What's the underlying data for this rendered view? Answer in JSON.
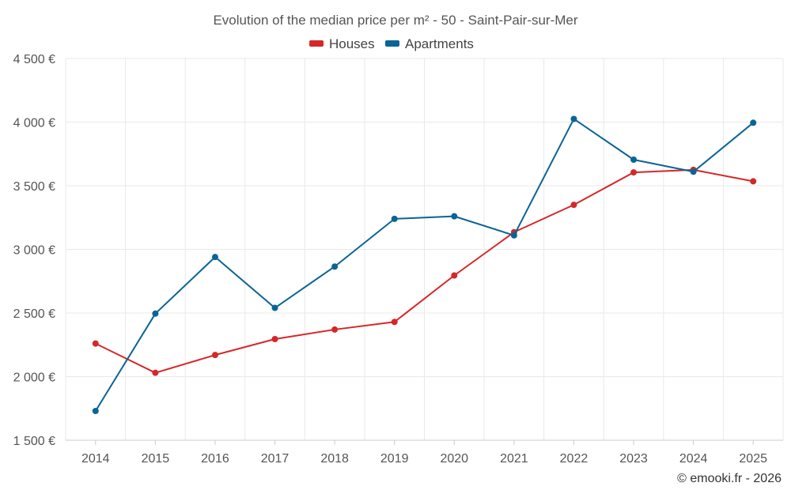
{
  "chart_data": {
    "type": "line",
    "title": "Evolution of the median price per m² - 50 - Saint-Pair-sur-Mer",
    "categories": [
      "2014",
      "2015",
      "2016",
      "2017",
      "2018",
      "2019",
      "2020",
      "2021",
      "2022",
      "2023",
      "2024",
      "2025"
    ],
    "series": [
      {
        "name": "Houses",
        "color": "#d62728",
        "values": [
          2260,
          2030,
          2170,
          2295,
          2370,
          2430,
          2795,
          3135,
          3350,
          3605,
          3625,
          3535
        ]
      },
      {
        "name": "Apartments",
        "color": "#0a6496",
        "values": [
          1730,
          2495,
          2940,
          2540,
          2865,
          3240,
          3260,
          3110,
          4025,
          3705,
          3610,
          3995
        ]
      }
    ],
    "ylim": [
      1500,
      4500
    ],
    "yticks": [
      1500,
      2000,
      2500,
      3000,
      3500,
      4000,
      4500
    ],
    "ytick_labels": [
      "1 500 €",
      "2 000 €",
      "2 500 €",
      "3 000 €",
      "3 500 €",
      "4 000 €",
      "4 500 €"
    ],
    "xlabel": "",
    "ylabel": "",
    "grid": true,
    "legend_position": "top-center"
  },
  "credit": "© emooki.fr - 2026"
}
